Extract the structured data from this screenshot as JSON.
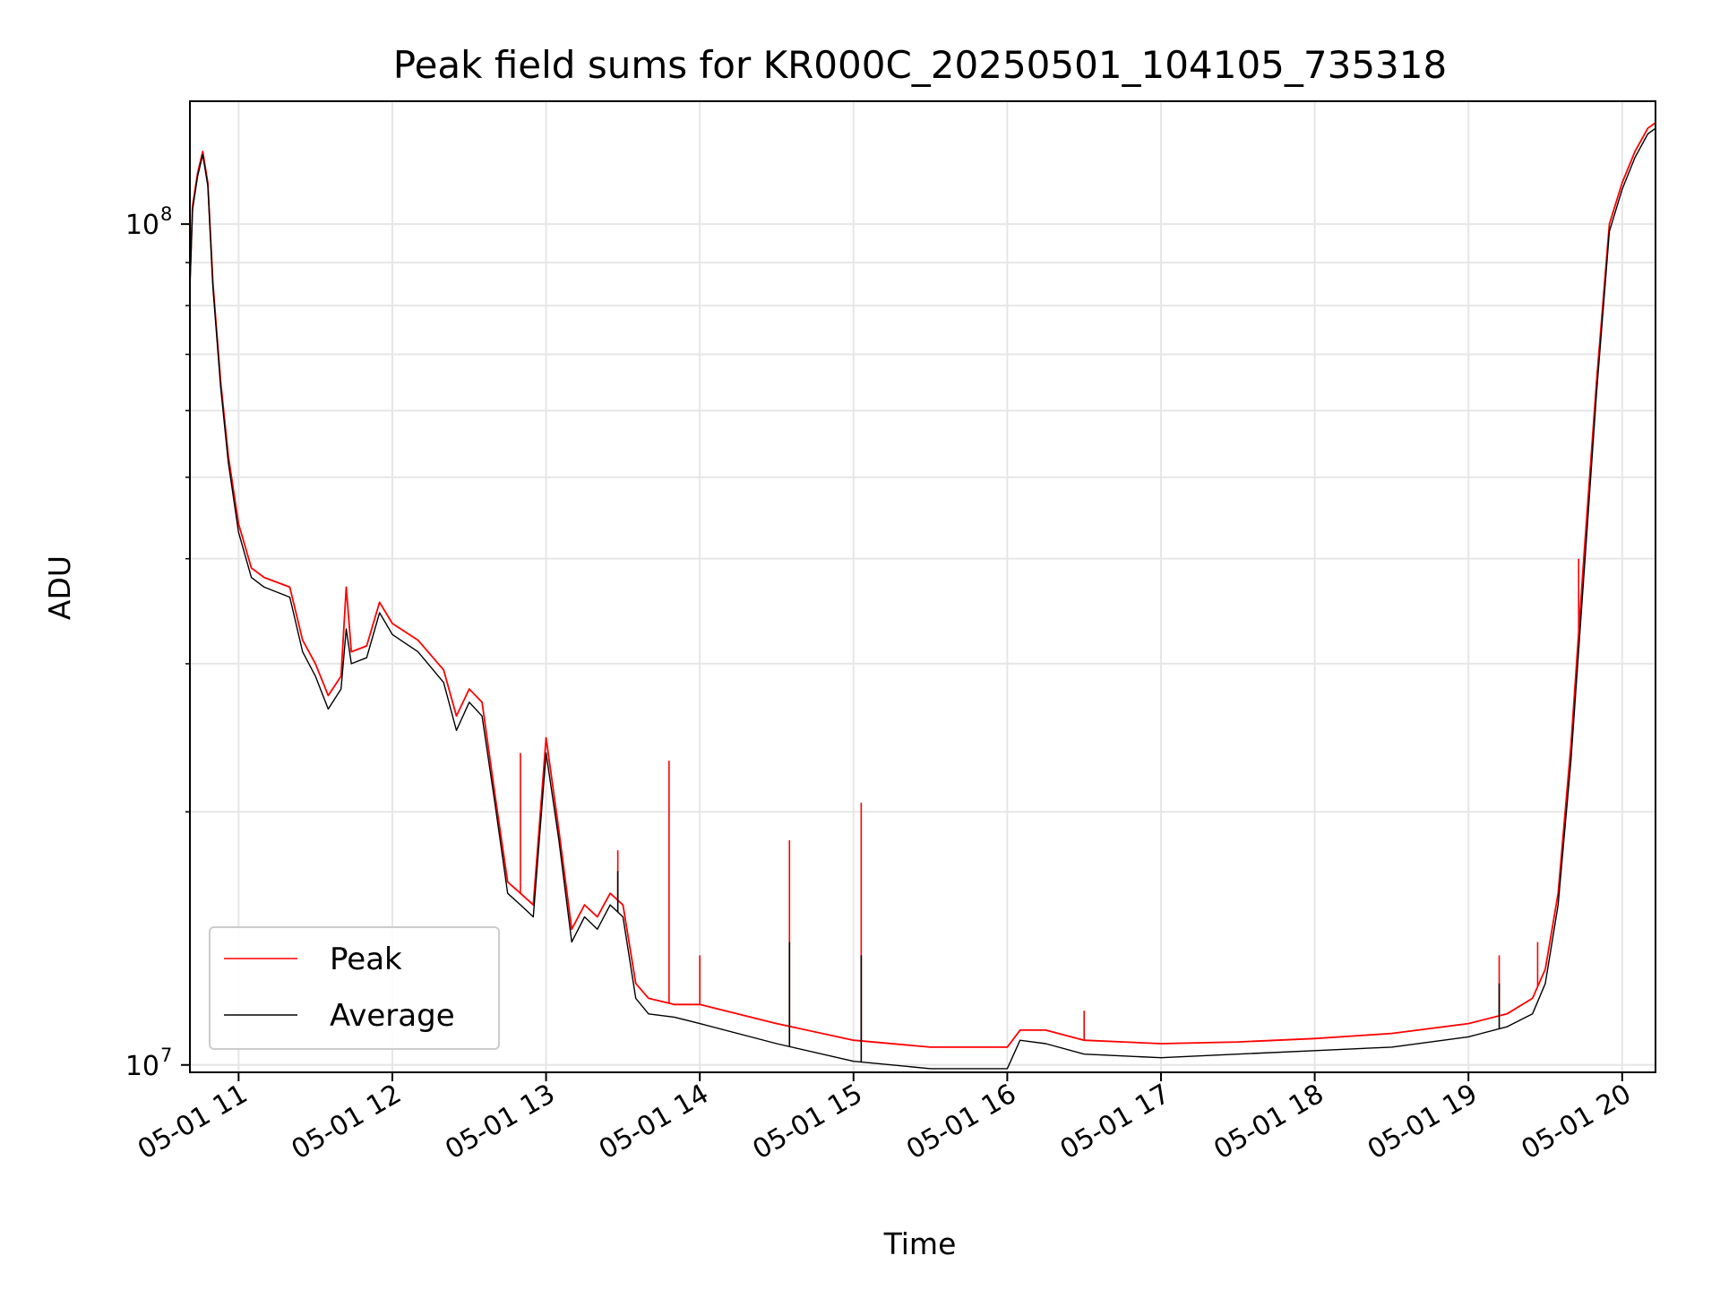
{
  "chart_data": {
    "type": "line",
    "title": "Peak field sums for KR000C_20250501_104105_735318",
    "xlabel": "Time",
    "ylabel": "ADU",
    "y_scale": "log",
    "ylim": [
      9800000,
      140000000
    ],
    "xlim": [
      "2025-05-01 10:41",
      "2025-05-01 20:13"
    ],
    "x_tick_labels": [
      "05-01 11",
      "05-01 12",
      "05-01 13",
      "05-01 14",
      "05-01 15",
      "05-01 16",
      "05-01 17",
      "05-01 18",
      "05-01 19",
      "05-01 20"
    ],
    "y_tick_labels": [
      {
        "value": 10000000,
        "base": "10",
        "exp": "7"
      },
      {
        "value": 100000000,
        "base": "10",
        "exp": "8"
      }
    ],
    "grid": true,
    "legend_position": "lower-left",
    "series": [
      {
        "name": "Peak",
        "color": "#ff0000",
        "points": [
          [
            "2025-05-01 10:41",
            85000000
          ],
          [
            "2025-05-01 10:42",
            105000000
          ],
          [
            "2025-05-01 10:44",
            115000000
          ],
          [
            "2025-05-01 10:46",
            122000000
          ],
          [
            "2025-05-01 10:48",
            112000000
          ],
          [
            "2025-05-01 10:50",
            85000000
          ],
          [
            "2025-05-01 10:53",
            65000000
          ],
          [
            "2025-05-01 10:56",
            53000000
          ],
          [
            "2025-05-01 11:00",
            44000000
          ],
          [
            "2025-05-01 11:05",
            39000000
          ],
          [
            "2025-05-01 11:10",
            38000000
          ],
          [
            "2025-05-01 11:15",
            37500000
          ],
          [
            "2025-05-01 11:20",
            37000000
          ],
          [
            "2025-05-01 11:25",
            32000000
          ],
          [
            "2025-05-01 11:30",
            30000000
          ],
          [
            "2025-05-01 11:35",
            27500000
          ],
          [
            "2025-05-01 11:40",
            29000000
          ],
          [
            "2025-05-01 11:42",
            37000000
          ],
          [
            "2025-05-01 11:44",
            31000000
          ],
          [
            "2025-05-01 11:50",
            31500000
          ],
          [
            "2025-05-01 11:55",
            35500000
          ],
          [
            "2025-05-01 12:00",
            33500000
          ],
          [
            "2025-05-01 12:10",
            32000000
          ],
          [
            "2025-05-01 12:20",
            29500000
          ],
          [
            "2025-05-01 12:25",
            26000000
          ],
          [
            "2025-05-01 12:30",
            28000000
          ],
          [
            "2025-05-01 12:35",
            27000000
          ],
          [
            "2025-05-01 12:40",
            21000000
          ],
          [
            "2025-05-01 12:45",
            16500000
          ],
          [
            "2025-05-01 12:50",
            16000000
          ],
          [
            "2025-05-01 12:55",
            15500000
          ],
          [
            "2025-05-01 13:00",
            24500000
          ],
          [
            "2025-05-01 13:05",
            19000000
          ],
          [
            "2025-05-01 13:10",
            14500000
          ],
          [
            "2025-05-01 13:15",
            15500000
          ],
          [
            "2025-05-01 13:20",
            15000000
          ],
          [
            "2025-05-01 13:25",
            16000000
          ],
          [
            "2025-05-01 13:30",
            15500000
          ],
          [
            "2025-05-01 13:35",
            12500000
          ],
          [
            "2025-05-01 13:40",
            12000000
          ],
          [
            "2025-05-01 13:50",
            11800000
          ],
          [
            "2025-05-01 14:00",
            11800000
          ],
          [
            "2025-05-01 14:30",
            11200000
          ],
          [
            "2025-05-01 15:00",
            10700000
          ],
          [
            "2025-05-01 15:30",
            10500000
          ],
          [
            "2025-05-01 16:00",
            10500000
          ],
          [
            "2025-05-01 16:05",
            11000000
          ],
          [
            "2025-05-01 16:15",
            11000000
          ],
          [
            "2025-05-01 16:30",
            10700000
          ],
          [
            "2025-05-01 17:00",
            10600000
          ],
          [
            "2025-05-01 17:30",
            10650000
          ],
          [
            "2025-05-01 18:00",
            10750000
          ],
          [
            "2025-05-01 18:30",
            10900000
          ],
          [
            "2025-05-01 19:00",
            11200000
          ],
          [
            "2025-05-01 19:15",
            11500000
          ],
          [
            "2025-05-01 19:25",
            12000000
          ],
          [
            "2025-05-01 19:30",
            13000000
          ],
          [
            "2025-05-01 19:35",
            16000000
          ],
          [
            "2025-05-01 19:40",
            24000000
          ],
          [
            "2025-05-01 19:45",
            40000000
          ],
          [
            "2025-05-01 19:50",
            65000000
          ],
          [
            "2025-05-01 19:55",
            100000000
          ],
          [
            "2025-05-01 20:00",
            112000000
          ],
          [
            "2025-05-01 20:05",
            122000000
          ],
          [
            "2025-05-01 20:10",
            130000000
          ],
          [
            "2025-05-01 20:13",
            132000000
          ]
        ],
        "spikes": [
          [
            "2025-05-01 11:42",
            37000000
          ],
          [
            "2025-05-01 12:50",
            23500000
          ],
          [
            "2025-05-01 13:28",
            18000000
          ],
          [
            "2025-05-01 13:48",
            23000000
          ],
          [
            "2025-05-01 14:00",
            13500000
          ],
          [
            "2025-05-01 14:35",
            18500000
          ],
          [
            "2025-05-01 15:03",
            20500000
          ],
          [
            "2025-05-01 16:30",
            11600000
          ],
          [
            "2025-05-01 19:12",
            13500000
          ],
          [
            "2025-05-01 19:27",
            14000000
          ],
          [
            "2025-05-01 19:43",
            40000000
          ]
        ]
      },
      {
        "name": "Average",
        "color": "#000000",
        "points": [
          [
            "2025-05-01 10:41",
            84000000
          ],
          [
            "2025-05-01 10:42",
            104000000
          ],
          [
            "2025-05-01 10:44",
            114000000
          ],
          [
            "2025-05-01 10:46",
            121000000
          ],
          [
            "2025-05-01 10:48",
            111000000
          ],
          [
            "2025-05-01 10:50",
            84000000
          ],
          [
            "2025-05-01 10:53",
            64000000
          ],
          [
            "2025-05-01 10:56",
            52000000
          ],
          [
            "2025-05-01 11:00",
            43000000
          ],
          [
            "2025-05-01 11:05",
            38000000
          ],
          [
            "2025-05-01 11:10",
            37000000
          ],
          [
            "2025-05-01 11:15",
            36500000
          ],
          [
            "2025-05-01 11:20",
            36000000
          ],
          [
            "2025-05-01 11:25",
            31000000
          ],
          [
            "2025-05-01 11:30",
            29000000
          ],
          [
            "2025-05-01 11:35",
            26500000
          ],
          [
            "2025-05-01 11:40",
            28000000
          ],
          [
            "2025-05-01 11:42",
            33000000
          ],
          [
            "2025-05-01 11:44",
            30000000
          ],
          [
            "2025-05-01 11:50",
            30500000
          ],
          [
            "2025-05-01 11:55",
            34500000
          ],
          [
            "2025-05-01 12:00",
            32500000
          ],
          [
            "2025-05-01 12:10",
            31000000
          ],
          [
            "2025-05-01 12:20",
            28500000
          ],
          [
            "2025-05-01 12:25",
            25000000
          ],
          [
            "2025-05-01 12:30",
            27000000
          ],
          [
            "2025-05-01 12:35",
            26000000
          ],
          [
            "2025-05-01 12:40",
            20500000
          ],
          [
            "2025-05-01 12:45",
            16000000
          ],
          [
            "2025-05-01 12:50",
            15500000
          ],
          [
            "2025-05-01 12:55",
            15000000
          ],
          [
            "2025-05-01 13:00",
            23500000
          ],
          [
            "2025-05-01 13:05",
            18500000
          ],
          [
            "2025-05-01 13:10",
            14000000
          ],
          [
            "2025-05-01 13:15",
            15000000
          ],
          [
            "2025-05-01 13:20",
            14500000
          ],
          [
            "2025-05-01 13:25",
            15500000
          ],
          [
            "2025-05-01 13:30",
            15000000
          ],
          [
            "2025-05-01 13:35",
            12000000
          ],
          [
            "2025-05-01 13:40",
            11500000
          ],
          [
            "2025-05-01 13:50",
            11400000
          ],
          [
            "2025-05-01 14:00",
            11200000
          ],
          [
            "2025-05-01 14:30",
            10600000
          ],
          [
            "2025-05-01 15:00",
            10100000
          ],
          [
            "2025-05-01 15:30",
            9900000
          ],
          [
            "2025-05-01 16:00",
            9900000
          ],
          [
            "2025-05-01 16:05",
            10700000
          ],
          [
            "2025-05-01 16:15",
            10600000
          ],
          [
            "2025-05-01 16:30",
            10300000
          ],
          [
            "2025-05-01 17:00",
            10200000
          ],
          [
            "2025-05-01 17:30",
            10300000
          ],
          [
            "2025-05-01 18:00",
            10400000
          ],
          [
            "2025-05-01 18:30",
            10500000
          ],
          [
            "2025-05-01 19:00",
            10800000
          ],
          [
            "2025-05-01 19:15",
            11100000
          ],
          [
            "2025-05-01 19:25",
            11500000
          ],
          [
            "2025-05-01 19:30",
            12500000
          ],
          [
            "2025-05-01 19:35",
            15500000
          ],
          [
            "2025-05-01 19:40",
            23000000
          ],
          [
            "2025-05-01 19:45",
            38000000
          ],
          [
            "2025-05-01 19:50",
            63000000
          ],
          [
            "2025-05-01 19:55",
            98000000
          ],
          [
            "2025-05-01 20:00",
            110000000
          ],
          [
            "2025-05-01 20:05",
            120000000
          ],
          [
            "2025-05-01 20:10",
            128000000
          ],
          [
            "2025-05-01 20:13",
            130000000
          ]
        ],
        "spikes": [
          [
            "2025-05-01 11:42",
            33000000
          ],
          [
            "2025-05-01 13:28",
            17000000
          ],
          [
            "2025-05-01 14:35",
            14000000
          ],
          [
            "2025-05-01 15:03",
            13500000
          ],
          [
            "2025-05-01 19:12",
            12500000
          ]
        ]
      }
    ]
  }
}
